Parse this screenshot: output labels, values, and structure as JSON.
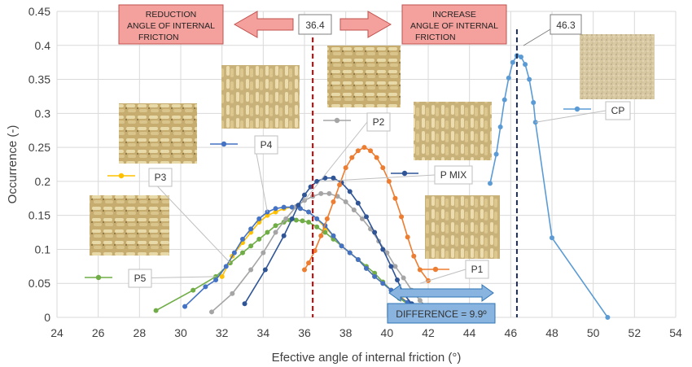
{
  "chart_data": {
    "type": "line",
    "xlabel": "Efective angle of internal friction (°)",
    "ylabel": "Occurrence (-)",
    "xlim": [
      24,
      54
    ],
    "ylim": [
      0,
      0.45
    ],
    "x_ticks": [
      "24",
      "26",
      "28",
      "30",
      "32",
      "34",
      "36",
      "38",
      "40",
      "42",
      "44",
      "46",
      "48",
      "50",
      "52",
      "54"
    ],
    "y_ticks": [
      "0",
      "0.05",
      "0.1",
      "0.15",
      "0.2",
      "0.25",
      "0.3",
      "0.35",
      "0.4",
      "0.45"
    ],
    "grid": true,
    "series": [
      {
        "name": "P5",
        "color": "#70ad47",
        "points": [
          [
            28.8,
            0.01
          ],
          [
            30.6,
            0.04
          ],
          [
            31.7,
            0.06
          ],
          [
            32.4,
            0.08
          ],
          [
            33.0,
            0.095
          ],
          [
            33.4,
            0.105
          ],
          [
            33.8,
            0.115
          ],
          [
            34.2,
            0.125
          ],
          [
            34.6,
            0.135
          ],
          [
            35.0,
            0.14
          ],
          [
            35.3,
            0.143
          ],
          [
            35.6,
            0.143
          ],
          [
            35.9,
            0.142
          ],
          [
            36.2,
            0.14
          ],
          [
            36.6,
            0.133
          ],
          [
            37.0,
            0.125
          ],
          [
            37.4,
            0.115
          ],
          [
            37.8,
            0.105
          ],
          [
            38.2,
            0.095
          ],
          [
            38.6,
            0.085
          ],
          [
            39.0,
            0.075
          ],
          [
            39.4,
            0.065
          ],
          [
            39.8,
            0.052
          ],
          [
            40.2,
            0.04
          ],
          [
            40.6,
            0.028
          ],
          [
            41.0,
            0.02
          ],
          [
            41.5,
            0.012
          ],
          [
            42.0,
            0.005
          ]
        ]
      },
      {
        "name": "P3",
        "color": "#ffc000",
        "points": [
          [
            32.0,
            0.06
          ],
          [
            32.5,
            0.09
          ],
          [
            33.0,
            0.11
          ],
          [
            33.4,
            0.125
          ],
          [
            33.8,
            0.14
          ],
          [
            34.2,
            0.15
          ],
          [
            34.6,
            0.155
          ],
          [
            35.0,
            0.16
          ],
          [
            35.4,
            0.162
          ],
          [
            35.8,
            0.16
          ],
          [
            36.2,
            0.155
          ],
          [
            36.6,
            0.145
          ],
          [
            37.0,
            0.132
          ],
          [
            37.4,
            0.12
          ],
          [
            37.8,
            0.105
          ],
          [
            38.2,
            0.095
          ],
          [
            38.6,
            0.085
          ],
          [
            39.0,
            0.072
          ],
          [
            39.4,
            0.06
          ],
          [
            39.8,
            0.05
          ],
          [
            40.2,
            0.04
          ],
          [
            40.6,
            0.032
          ],
          [
            41.0,
            0.022
          ],
          [
            41.5,
            0.015
          ]
        ]
      },
      {
        "name": "P4",
        "color": "#4472c4",
        "points": [
          [
            30.2,
            0.016
          ],
          [
            31.2,
            0.045
          ],
          [
            31.7,
            0.055
          ],
          [
            32.2,
            0.075
          ],
          [
            32.6,
            0.095
          ],
          [
            33.0,
            0.115
          ],
          [
            33.4,
            0.13
          ],
          [
            33.8,
            0.145
          ],
          [
            34.2,
            0.155
          ],
          [
            34.6,
            0.16
          ],
          [
            35.0,
            0.162
          ],
          [
            35.4,
            0.162
          ],
          [
            35.8,
            0.16
          ],
          [
            36.2,
            0.155
          ],
          [
            36.6,
            0.145
          ],
          [
            37.0,
            0.135
          ],
          [
            37.4,
            0.12
          ],
          [
            37.8,
            0.105
          ],
          [
            38.2,
            0.095
          ],
          [
            38.6,
            0.085
          ],
          [
            39.0,
            0.072
          ],
          [
            39.4,
            0.06
          ],
          [
            39.8,
            0.05
          ],
          [
            40.2,
            0.04
          ],
          [
            40.6,
            0.03
          ],
          [
            41.0,
            0.022
          ]
        ]
      },
      {
        "name": "P2",
        "color": "#a5a5a5",
        "points": [
          [
            31.5,
            0.008
          ],
          [
            32.5,
            0.035
          ],
          [
            33.4,
            0.07
          ],
          [
            34.0,
            0.095
          ],
          [
            34.6,
            0.125
          ],
          [
            35.1,
            0.145
          ],
          [
            35.6,
            0.163
          ],
          [
            36.0,
            0.172
          ],
          [
            36.4,
            0.178
          ],
          [
            36.8,
            0.182
          ],
          [
            37.2,
            0.182
          ],
          [
            37.6,
            0.178
          ],
          [
            38.0,
            0.17
          ],
          [
            38.4,
            0.158
          ],
          [
            38.8,
            0.145
          ],
          [
            39.2,
            0.13
          ],
          [
            39.6,
            0.112
          ],
          [
            40.0,
            0.095
          ],
          [
            40.4,
            0.075
          ],
          [
            40.8,
            0.058
          ],
          [
            41.2,
            0.04
          ],
          [
            41.6,
            0.025
          ],
          [
            42.0,
            0.012
          ]
        ]
      },
      {
        "name": "P MIX",
        "color": "#2f5597",
        "points": [
          [
            33.1,
            0.02
          ],
          [
            34.1,
            0.07
          ],
          [
            35.0,
            0.12
          ],
          [
            35.4,
            0.145
          ],
          [
            35.7,
            0.165
          ],
          [
            36.0,
            0.18
          ],
          [
            36.3,
            0.192
          ],
          [
            36.6,
            0.2
          ],
          [
            37.0,
            0.205
          ],
          [
            37.4,
            0.205
          ],
          [
            37.8,
            0.198
          ],
          [
            38.2,
            0.185
          ],
          [
            38.6,
            0.168
          ],
          [
            39.0,
            0.148
          ],
          [
            39.4,
            0.125
          ],
          [
            39.8,
            0.1
          ],
          [
            40.2,
            0.075
          ],
          [
            40.5,
            0.055
          ],
          [
            40.8,
            0.035
          ],
          [
            41.2,
            0.02
          ]
        ]
      },
      {
        "name": "P1",
        "color": "#ed7d31",
        "points": [
          [
            36.0,
            0.07
          ],
          [
            36.2,
            0.08
          ],
          [
            36.5,
            0.098
          ],
          [
            36.8,
            0.12
          ],
          [
            37.1,
            0.145
          ],
          [
            37.4,
            0.17
          ],
          [
            37.7,
            0.195
          ],
          [
            38.0,
            0.22
          ],
          [
            38.3,
            0.235
          ],
          [
            38.6,
            0.245
          ],
          [
            38.9,
            0.25
          ],
          [
            39.2,
            0.245
          ],
          [
            39.5,
            0.235
          ],
          [
            39.8,
            0.22
          ],
          [
            40.1,
            0.2
          ],
          [
            40.4,
            0.175
          ],
          [
            40.7,
            0.148
          ],
          [
            41.0,
            0.118
          ],
          [
            41.3,
            0.09
          ],
          [
            41.6,
            0.07
          ],
          [
            42.0,
            0.054
          ]
        ]
      },
      {
        "name": "CP",
        "color": "#5b9bd5",
        "points": [
          [
            45.0,
            0.197
          ],
          [
            45.3,
            0.24
          ],
          [
            45.5,
            0.28
          ],
          [
            45.7,
            0.32
          ],
          [
            45.9,
            0.352
          ],
          [
            46.1,
            0.375
          ],
          [
            46.3,
            0.385
          ],
          [
            46.5,
            0.383
          ],
          [
            46.7,
            0.372
          ],
          [
            46.9,
            0.35
          ],
          [
            47.1,
            0.316
          ],
          [
            47.2,
            0.287
          ],
          [
            48.0,
            0.117
          ],
          [
            50.7,
            0.0
          ]
        ]
      }
    ],
    "legend": [
      {
        "name": "P3",
        "color": "#ffc000"
      },
      {
        "name": "P4",
        "color": "#4472c4"
      },
      {
        "name": "P2",
        "color": "#a5a5a5"
      },
      {
        "name": "P MIX",
        "color": "#2f5597"
      },
      {
        "name": "P1",
        "color": "#ed7d31"
      },
      {
        "name": "P5",
        "color": "#70ad47"
      },
      {
        "name": "CP",
        "color": "#5b9bd5"
      }
    ],
    "reference_lines": [
      {
        "x": 36.4,
        "label": "36.4",
        "color": "#c00000"
      },
      {
        "x": 46.3,
        "label": "46.3",
        "color": "#1f2d50"
      }
    ],
    "annotations": {
      "reduction_line1": "REDUCTION",
      "reduction_line2": "ANGLE OF INTERNAL",
      "reduction_line3": "FRICTION",
      "increase_line1": "INCREASE",
      "increase_line2": "ANGLE OF INTERNAL",
      "increase_line3": "FRICTION",
      "difference": "DIFFERENCE = 9.9º"
    },
    "colors": {
      "banner_fill": "#f4a09c",
      "banner_stroke": "#c0504d",
      "arrow_fill": "#f4a09c",
      "difference_fill": "#8ab4e0",
      "difference_stroke": "#2e75b6"
    }
  }
}
